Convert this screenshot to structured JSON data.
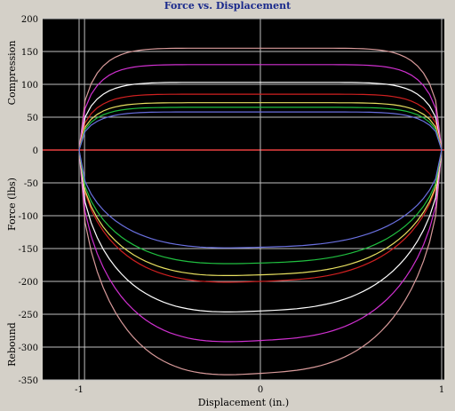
{
  "chart_data": {
    "type": "line",
    "title": "Force vs. Displacement",
    "xlabel": "Displacement (in.)",
    "ylabel": "Force (lbs)",
    "ylabel_top": "Compression",
    "ylabel_bottom": "Rebound",
    "xlim": [
      -1,
      1
    ],
    "ylim": [
      -350,
      200
    ],
    "x_ticks": [
      -1,
      0,
      1
    ],
    "y_ticks": [
      200,
      150,
      100,
      50,
      0,
      -50,
      -100,
      -150,
      -200,
      -250,
      -300,
      -350
    ],
    "grid": true,
    "colors": {
      "background": "#000000",
      "frame": "#d4d0c8",
      "title": "#1a2a8c",
      "grid": "#bfbfbf",
      "zero_line": "#b03030",
      "text": "#000000"
    },
    "series": [
      {
        "color": "#d89a9a",
        "compression": 155,
        "rebound": -340
      },
      {
        "color": "#d030d0",
        "compression": 130,
        "rebound": -290
      },
      {
        "color": "#ffffff",
        "compression": 103,
        "rebound": -245
      },
      {
        "color": "#d02020",
        "compression": 85,
        "rebound": -200
      },
      {
        "color": "#e8e060",
        "compression": 72,
        "rebound": -190
      },
      {
        "color": "#20c040",
        "compression": 65,
        "rebound": -172
      },
      {
        "color": "#6a70e0",
        "compression": 58,
        "rebound": -148
      }
    ]
  }
}
